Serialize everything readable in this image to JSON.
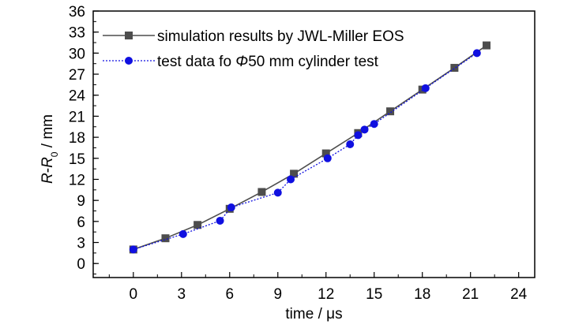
{
  "chart_data": {
    "type": "line",
    "xlabel": "time / μs",
    "ylabel": "R-R0 / mm",
    "xlim": [
      -2.5,
      25
    ],
    "ylim": [
      -2,
      36
    ],
    "xticks": [
      0,
      3,
      6,
      9,
      12,
      15,
      18,
      21,
      24
    ],
    "yticks": [
      0,
      3,
      6,
      9,
      12,
      15,
      18,
      21,
      24,
      27,
      30,
      33,
      36
    ],
    "grid": false,
    "legend_position": "top-left",
    "series": [
      {
        "name": "simulation results by JWL-Miller EOS",
        "color": "#4d4d4d",
        "marker": "square",
        "line_style": "solid",
        "points": [
          [
            0,
            2.0
          ],
          [
            2,
            3.6
          ],
          [
            4,
            5.5
          ],
          [
            6,
            7.8
          ],
          [
            8,
            10.2
          ],
          [
            10,
            12.8
          ],
          [
            12,
            15.7
          ],
          [
            14,
            18.6
          ],
          [
            16,
            21.7
          ],
          [
            18,
            24.8
          ],
          [
            20,
            27.9
          ],
          [
            22,
            31.1
          ]
        ]
      },
      {
        "name": "test data fo Φ50 mm cylinder test",
        "color": "#1010e0",
        "marker": "circle",
        "line_style": "dotted",
        "points": [
          [
            0,
            2.0
          ],
          [
            3.1,
            4.2
          ],
          [
            5.4,
            6.1
          ],
          [
            6.1,
            8.0
          ],
          [
            9.0,
            10.1
          ],
          [
            9.8,
            12.0
          ],
          [
            12.1,
            15.0
          ],
          [
            13.5,
            17.0
          ],
          [
            14.0,
            18.3
          ],
          [
            14.4,
            19.1
          ],
          [
            15.0,
            19.9
          ],
          [
            18.2,
            25.0
          ],
          [
            21.4,
            30.0
          ]
        ]
      }
    ]
  }
}
